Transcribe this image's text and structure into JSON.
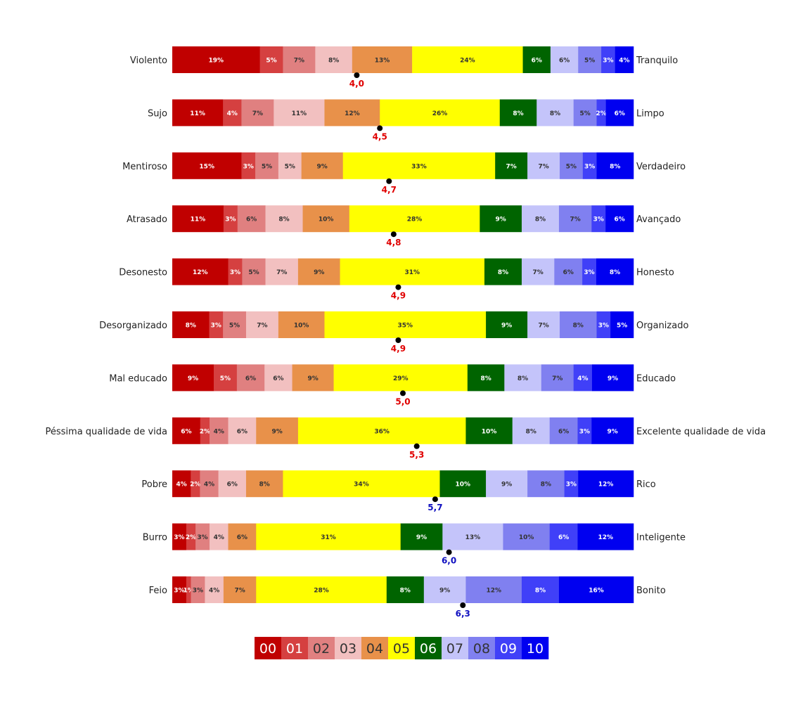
{
  "chart_data": {
    "type": "bar",
    "stacked": "100%",
    "orientation": "horizontal",
    "legend_position": "bottom",
    "colors": [
      "#C00000",
      "#D54040",
      "#E08080",
      "#F2C0C0",
      "#E8914A",
      "#FFFF00",
      "#006400",
      "#C4C4FA",
      "#8080F0",
      "#4040F8",
      "#0000F0"
    ],
    "mean_colors": {
      "low": "#E00000",
      "high": "#1010C0"
    },
    "legend": [
      "00",
      "01",
      "02",
      "03",
      "04",
      "05",
      "06",
      "07",
      "08",
      "09",
      "10"
    ],
    "rows": [
      {
        "left": "Violento",
        "right": "Tranquilo",
        "values": [
          19,
          5,
          7,
          8,
          13,
          24,
          6,
          6,
          5,
          3,
          4
        ],
        "labels": [
          "19%",
          "5%",
          "7%",
          "8%",
          "13%",
          "24%",
          "6%",
          "6%",
          "5%",
          "3%",
          "4%"
        ],
        "mean": 4.0,
        "mean_label": "4,0"
      },
      {
        "left": "Sujo",
        "right": "Limpo",
        "values": [
          11,
          4,
          7,
          11,
          12,
          26,
          8,
          8,
          5,
          2,
          6
        ],
        "labels": [
          "11%",
          "4%",
          "7%",
          "11%",
          "12%",
          "26%",
          "8%",
          "8%",
          "5%",
          "2%",
          "6%"
        ],
        "mean": 4.5,
        "mean_label": "4,5"
      },
      {
        "left": "Mentiroso",
        "right": "Verdadeiro",
        "values": [
          15,
          3,
          5,
          5,
          9,
          33,
          7,
          7,
          5,
          3,
          8
        ],
        "labels": [
          "15%",
          "3%",
          "5%",
          "5%",
          "9%",
          "33%",
          "7%",
          "7%",
          "5%",
          "3%",
          "8%"
        ],
        "mean": 4.7,
        "mean_label": "4,7"
      },
      {
        "left": "Atrasado",
        "right": "Avançado",
        "values": [
          11,
          3,
          6,
          8,
          10,
          28,
          9,
          8,
          7,
          3,
          6
        ],
        "labels": [
          "11%",
          "3%",
          "6%",
          "8%",
          "10%",
          "28%",
          "9%",
          "8%",
          "7%",
          "3%",
          "6%"
        ],
        "mean": 4.8,
        "mean_label": "4,8"
      },
      {
        "left": "Desonesto",
        "right": "Honesto",
        "values": [
          12,
          3,
          5,
          7,
          9,
          31,
          8,
          7,
          6,
          3,
          8
        ],
        "labels": [
          "12%",
          "3%",
          "5%",
          "7%",
          "9%",
          "31%",
          "8%",
          "7%",
          "6%",
          "3%",
          "8%"
        ],
        "mean": 4.9,
        "mean_label": "4,9"
      },
      {
        "left": "Desorganizado",
        "right": "Organizado",
        "values": [
          8,
          3,
          5,
          7,
          10,
          35,
          9,
          7,
          8,
          3,
          5
        ],
        "labels": [
          "8%",
          "3%",
          "5%",
          "7%",
          "10%",
          "35%",
          "9%",
          "7%",
          "8%",
          "3%",
          "5%"
        ],
        "mean": 4.9,
        "mean_label": "4,9"
      },
      {
        "left": "Mal educado",
        "right": "Educado",
        "values": [
          9,
          5,
          6,
          6,
          9,
          29,
          8,
          8,
          7,
          4,
          9
        ],
        "labels": [
          "9%",
          "5%",
          "6%",
          "6%",
          "9%",
          "29%",
          "8%",
          "8%",
          "7%",
          "4%",
          "9%"
        ],
        "mean": 5.0,
        "mean_label": "5,0"
      },
      {
        "left": "Péssima qualidade de vida",
        "right": "Excelente qualidade de vida",
        "values": [
          6,
          2,
          4,
          6,
          9,
          36,
          10,
          8,
          6,
          3,
          9
        ],
        "labels": [
          "6%",
          "2%",
          "4%",
          "6%",
          "9%",
          "36%",
          "10%",
          "8%",
          "6%",
          "3%",
          "9%"
        ],
        "mean": 5.3,
        "mean_label": "5,3"
      },
      {
        "left": "Pobre",
        "right": "Rico",
        "values": [
          4,
          2,
          4,
          6,
          8,
          34,
          10,
          9,
          8,
          3,
          12
        ],
        "labels": [
          "4%",
          "2%",
          "4%",
          "6%",
          "8%",
          "34%",
          "10%",
          "9%",
          "8%",
          "3%",
          "12%"
        ],
        "mean": 5.7,
        "mean_label": "5,7"
      },
      {
        "left": "Burro",
        "right": "Inteligente",
        "values": [
          3,
          2,
          3,
          4,
          6,
          31,
          9,
          13,
          10,
          6,
          12
        ],
        "labels": [
          "3%",
          "2%",
          "3%",
          "4%",
          "6%",
          "31%",
          "9%",
          "13%",
          "10%",
          "6%",
          "12%"
        ],
        "mean": 6.0,
        "mean_label": "6,0"
      },
      {
        "left": "Feio",
        "right": "Bonito",
        "values": [
          3,
          1,
          3,
          4,
          7,
          28,
          8,
          9,
          12,
          8,
          16
        ],
        "labels": [
          "3%",
          "1%",
          "3%",
          "4%",
          "7%",
          "28%",
          "8%",
          "9%",
          "12%",
          "8%",
          "16%"
        ],
        "mean": 6.3,
        "mean_label": "6,3"
      }
    ]
  }
}
